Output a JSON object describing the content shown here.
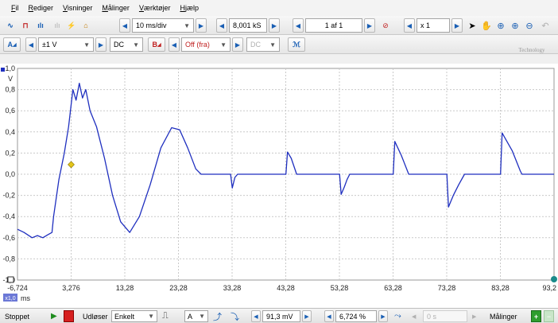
{
  "menu": {
    "items": [
      {
        "ul": "F",
        "rest": "il"
      },
      {
        "ul": "R",
        "rest": "ediger"
      },
      {
        "ul": "V",
        "rest": "isninger"
      },
      {
        "ul": "M",
        "rest": "ålinger"
      },
      {
        "ul": "V",
        "rest": "ærktøjer"
      },
      {
        "ul": "H",
        "rest": "jælp"
      }
    ]
  },
  "toolbar1": {
    "timebase": "10 ms/div",
    "samples": "8,001 kS",
    "capture_page": "1 af 1",
    "zoom": "x 1"
  },
  "toolbar2": {
    "channel_a_label": "A",
    "channel_a_range": "±1 V",
    "channel_a_coupling": "DC",
    "channel_b_label": "B",
    "channel_b_range": "Off (fra)",
    "channel_b_coupling": "DC",
    "brand_text": "Technology"
  },
  "plot": {
    "y_ticks": [
      "1,0",
      "0,8",
      "0,6",
      "0,4",
      "0,2",
      "0,0",
      "-0,2",
      "-0,4",
      "-0,6",
      "-0,8",
      "-1,0"
    ],
    "y_unit": "V",
    "x_ticks": [
      "-6,724",
      "3,276",
      "13,28",
      "23,28",
      "33,28",
      "43,28",
      "53,28",
      "63,28",
      "73,28",
      "83,28",
      "93,2"
    ],
    "x_unit": "ms",
    "zoom_badge": "x1,0",
    "trace_color": "#1f2fbf",
    "trigger_color": "#e4c61a"
  },
  "statusbar": {
    "status": "Stoppet",
    "trigger_label": "Udløser",
    "trigger_mode": "Enkelt",
    "trigger_channel": "A",
    "trigger_level": "91,3 mV",
    "pretrigger": "6,724 %",
    "delay": "0 s",
    "measurements": "Målinger"
  },
  "chart_data": {
    "type": "line",
    "title": "",
    "xlabel": "ms",
    "ylabel": "V",
    "xlim": [
      -6.724,
      93.276
    ],
    "ylim": [
      -1.0,
      1.0
    ],
    "grid": true,
    "series": [
      {
        "points": [
          [
            -6.724,
            -0.52
          ],
          [
            -5.5,
            -0.55
          ],
          [
            -4.0,
            -0.6
          ],
          [
            -3.0,
            -0.58
          ],
          [
            -2.0,
            -0.6
          ],
          [
            -1.0,
            -0.57
          ],
          [
            -0.3,
            -0.55
          ],
          [
            0.0,
            -0.4
          ],
          [
            1.0,
            -0.05
          ],
          [
            2.0,
            0.2
          ],
          [
            2.8,
            0.45
          ],
          [
            3.6,
            0.8
          ],
          [
            4.2,
            0.7
          ],
          [
            4.8,
            0.86
          ],
          [
            5.4,
            0.72
          ],
          [
            6.0,
            0.8
          ],
          [
            6.8,
            0.6
          ],
          [
            8.0,
            0.45
          ],
          [
            9.5,
            0.15
          ],
          [
            11.0,
            -0.2
          ],
          [
            12.5,
            -0.45
          ],
          [
            14.2,
            -0.55
          ],
          [
            16.0,
            -0.4
          ],
          [
            18.0,
            -0.1
          ],
          [
            20.0,
            0.25
          ],
          [
            22.0,
            0.44
          ],
          [
            23.5,
            0.42
          ],
          [
            25.0,
            0.25
          ],
          [
            26.5,
            0.05
          ],
          [
            27.5,
            0.0
          ],
          [
            33.0,
            0.0
          ],
          [
            33.3,
            -0.13
          ],
          [
            33.8,
            -0.03
          ],
          [
            34.3,
            0.0
          ],
          [
            43.3,
            0.0
          ],
          [
            43.6,
            0.21
          ],
          [
            44.3,
            0.15
          ],
          [
            45.3,
            0.0
          ],
          [
            53.3,
            0.0
          ],
          [
            53.6,
            -0.19
          ],
          [
            54.2,
            -0.12
          ],
          [
            54.7,
            -0.05
          ],
          [
            55.2,
            0.0
          ],
          [
            63.3,
            0.0
          ],
          [
            63.6,
            0.31
          ],
          [
            64.8,
            0.18
          ],
          [
            66.2,
            0.0
          ],
          [
            73.3,
            0.0
          ],
          [
            73.6,
            -0.31
          ],
          [
            74.5,
            -0.2
          ],
          [
            75.5,
            -0.1
          ],
          [
            76.6,
            0.0
          ],
          [
            83.3,
            0.0
          ],
          [
            83.6,
            0.39
          ],
          [
            85.5,
            0.22
          ],
          [
            87.0,
            0.03
          ],
          [
            87.3,
            0.0
          ],
          [
            93.276,
            0.0
          ]
        ]
      }
    ],
    "trigger_marker": [
      3.276,
      0.091
    ]
  }
}
